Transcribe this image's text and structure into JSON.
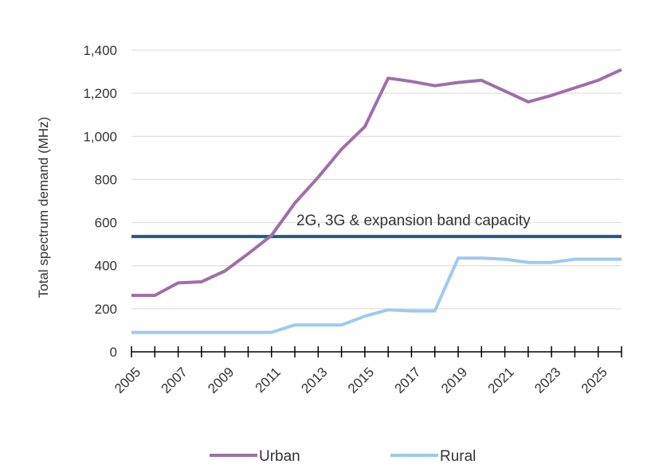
{
  "chart_data": {
    "type": "line",
    "ylabel": "Total spectrum demand (MHz)",
    "xlabel": "",
    "ylim": [
      0,
      1400
    ],
    "yticks": [
      0,
      200,
      400,
      600,
      800,
      1000,
      1200,
      1400
    ],
    "ytick_labels": [
      "0",
      "200",
      "400",
      "600",
      "800",
      "1,000",
      "1,200",
      "1,400"
    ],
    "xlim": [
      2005,
      2026
    ],
    "xtick_labels": [
      "2005",
      "2007",
      "2009",
      "2011",
      "2013",
      "2015",
      "2017",
      "2019",
      "2021",
      "2023",
      "2025"
    ],
    "x": [
      2005,
      2006,
      2007,
      2008,
      2009,
      2010,
      2011,
      2012,
      2013,
      2014,
      2015,
      2016,
      2017,
      2018,
      2019,
      2020,
      2021,
      2022,
      2023,
      2024,
      2025,
      2026
    ],
    "series": [
      {
        "name": "Urban",
        "color": "#9e6fa8",
        "values": [
          262,
          262,
          320,
          325,
          375,
          455,
          540,
          690,
          810,
          940,
          1045,
          1270,
          1255,
          1235,
          1250,
          1260,
          1210,
          1160,
          1190,
          1225,
          1260,
          1310
        ]
      },
      {
        "name": "Rural",
        "color": "#9fc9ef",
        "values": [
          90,
          90,
          90,
          90,
          90,
          90,
          90,
          125,
          125,
          125,
          165,
          195,
          190,
          190,
          435,
          435,
          430,
          415,
          415,
          430,
          430,
          430
        ]
      }
    ],
    "reference_line": {
      "label": "2G, 3G & expansion band capacity",
      "value": 535,
      "color": "#1f5a8a"
    },
    "grid": true,
    "legend_position": "bottom"
  }
}
